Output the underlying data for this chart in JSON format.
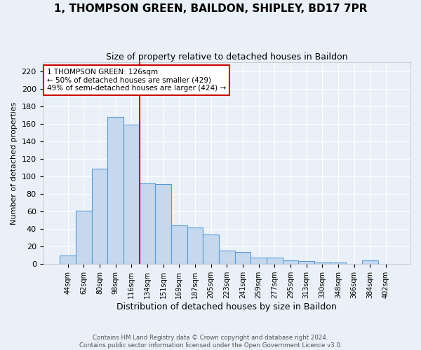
{
  "title": "1, THOMPSON GREEN, BAILDON, SHIPLEY, BD17 7PR",
  "subtitle": "Size of property relative to detached houses in Baildon",
  "xlabel": "Distribution of detached houses by size in Baildon",
  "ylabel": "Number of detached properties",
  "categories": [
    "44sqm",
    "62sqm",
    "80sqm",
    "98sqm",
    "116sqm",
    "134sqm",
    "151sqm",
    "169sqm",
    "187sqm",
    "205sqm",
    "223sqm",
    "241sqm",
    "259sqm",
    "277sqm",
    "295sqm",
    "313sqm",
    "330sqm",
    "348sqm",
    "366sqm",
    "384sqm",
    "402sqm"
  ],
  "values": [
    10,
    61,
    109,
    168,
    159,
    92,
    91,
    44,
    42,
    34,
    15,
    14,
    7,
    7,
    4,
    3,
    2,
    2,
    0,
    4,
    0
  ],
  "bar_color": "#c5d8ed",
  "bar_edge_color": "#5b9bd5",
  "vline_x": 4.5,
  "vline_color": "#cc0000",
  "annotation_text_line1": "1 THOMPSON GREEN: 126sqm",
  "annotation_text_line2": "← 50% of detached houses are smaller (429)",
  "annotation_text_line3": "49% of semi-detached houses are larger (424) →",
  "annotation_box_color": "#ffffff",
  "annotation_box_edge_color": "#cc0000",
  "ylim": [
    0,
    230
  ],
  "yticks": [
    0,
    20,
    40,
    60,
    80,
    100,
    120,
    140,
    160,
    180,
    200,
    220
  ],
  "background_color": "#eaf0f8",
  "grid_color": "#ffffff",
  "footer_line1": "Contains HM Land Registry data © Crown copyright and database right 2024.",
  "footer_line2": "Contains public sector information licensed under the Open Government Licence v3.0."
}
